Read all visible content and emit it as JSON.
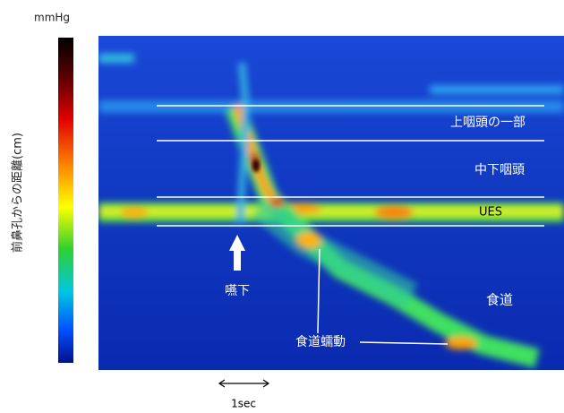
{
  "unit": "mmHg",
  "y_axis_label": "前鼻孔からの距離(cm)",
  "annotations": [
    "上咽頭の一部",
    "中下咽頭",
    "UES",
    "食道",
    "嚥下",
    "食道蠕動"
  ],
  "time_scale": "1sec"
}
